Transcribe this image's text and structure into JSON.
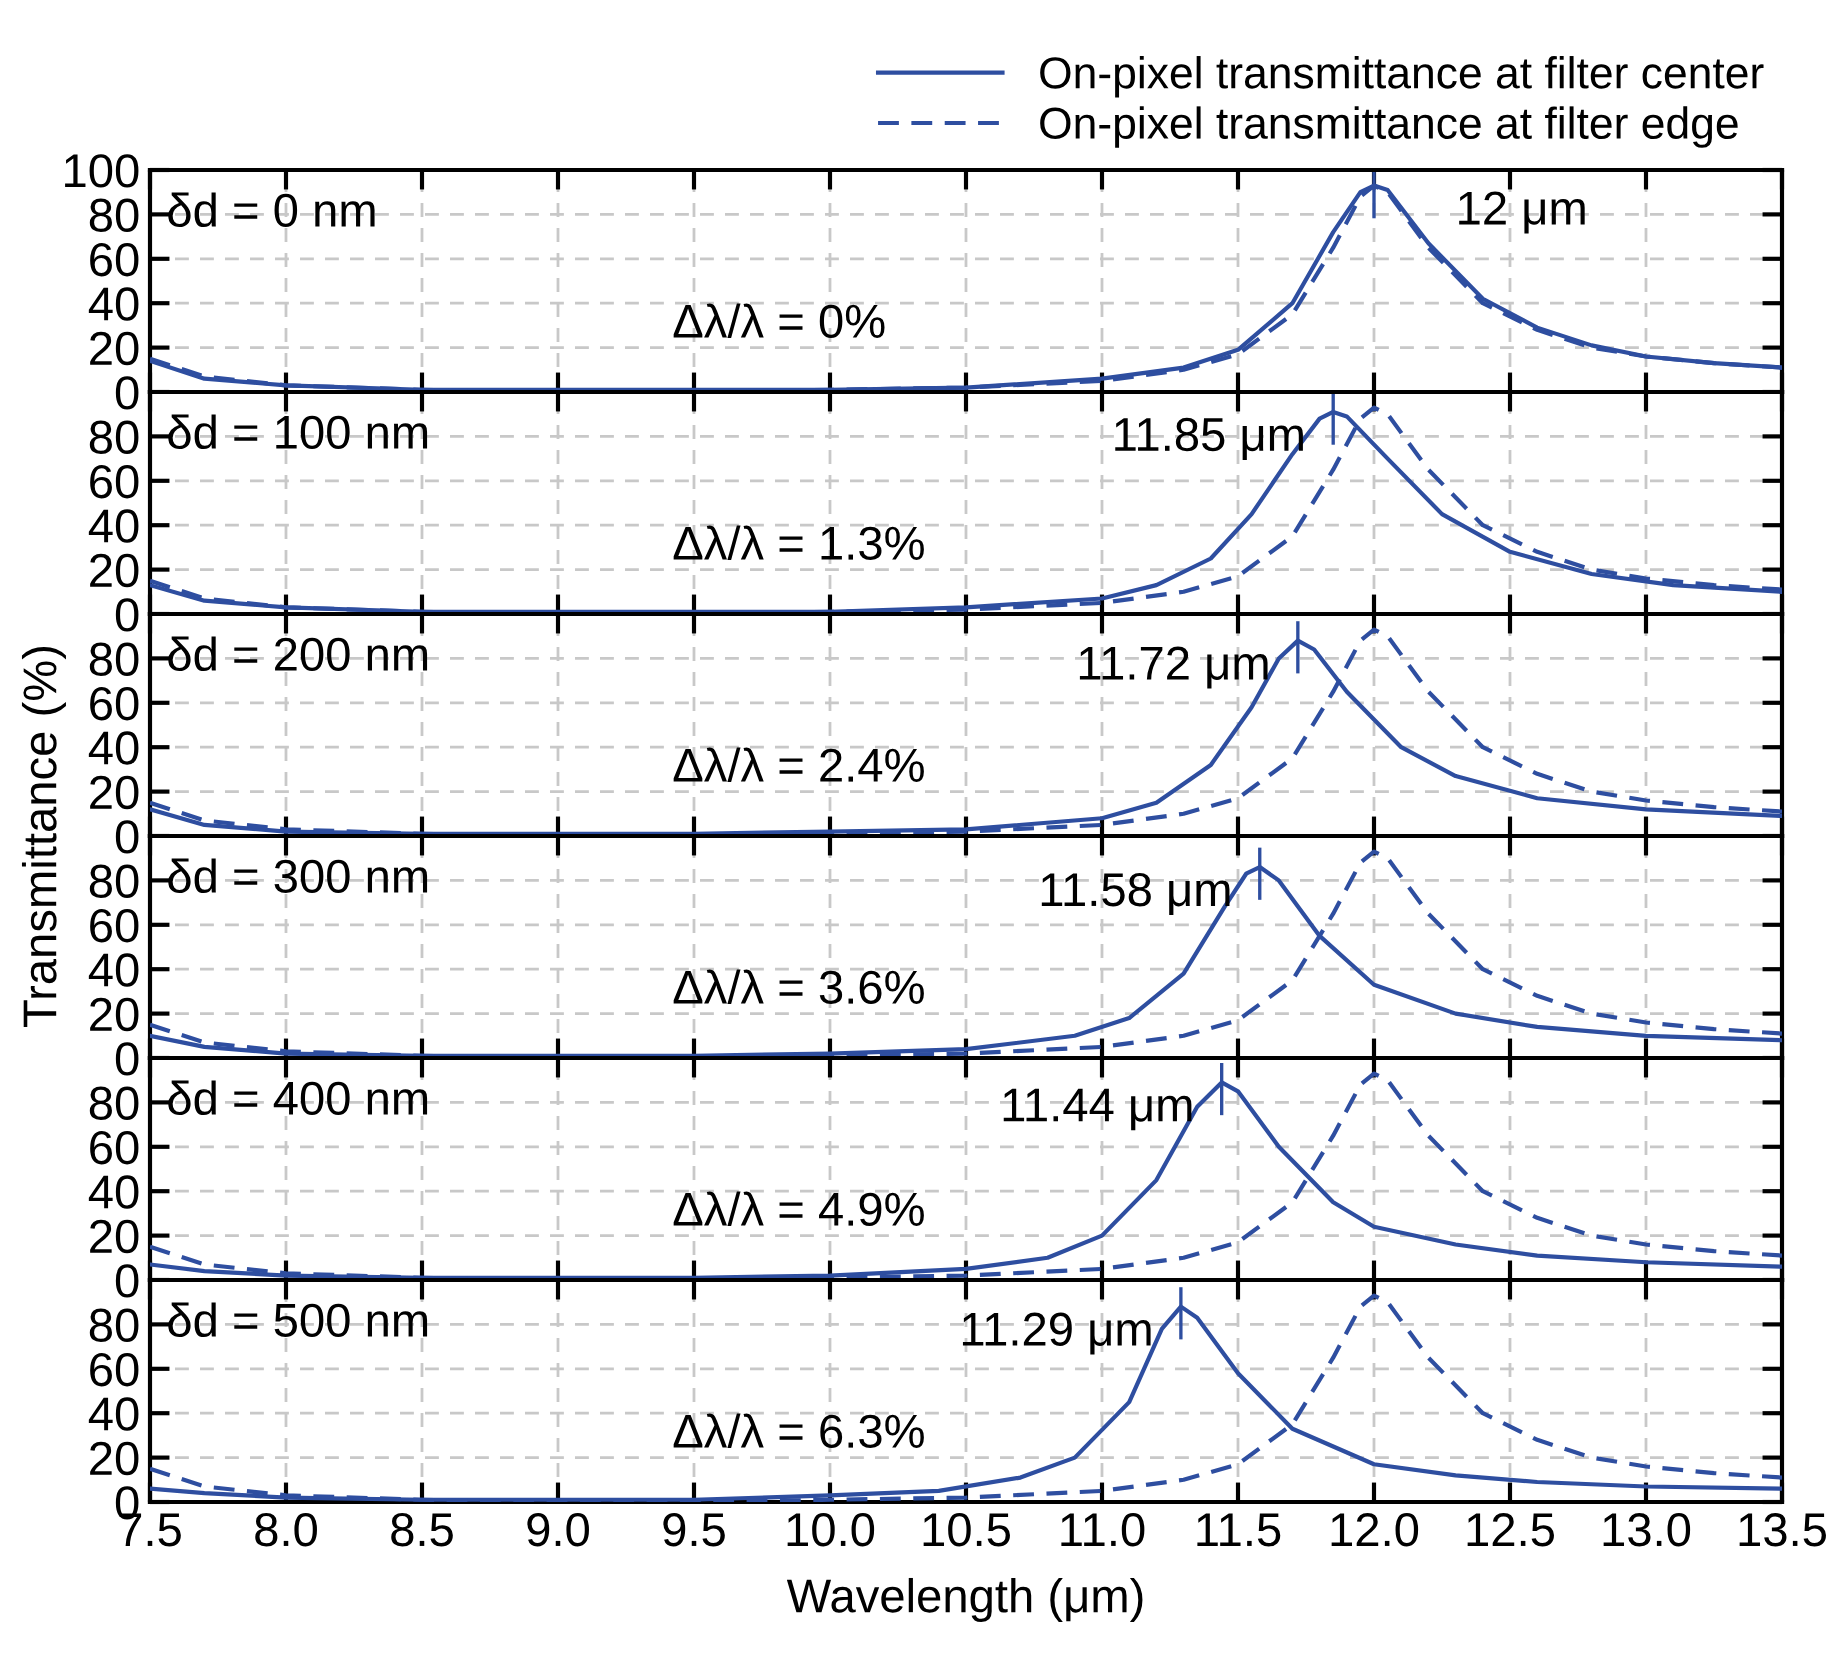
{
  "chart_data": [
    {
      "type": "line",
      "ylabel": "Transmittance (%)",
      "xlim": [
        7.5,
        13.5
      ],
      "ylim": [
        0,
        100
      ],
      "xticks": [
        7.5,
        8,
        8.5,
        9,
        9.5,
        10,
        10.5,
        11,
        11.5,
        12,
        12.5,
        13,
        13.5
      ],
      "yticks": [
        0,
        20,
        40,
        60,
        80,
        100
      ],
      "tick_labels": "y",
      "grid": true,
      "legend": "top right",
      "annotations": [
        "δd = 0 nm",
        "Δλ/λ = 0%",
        {
          "text": "12 μm",
          "x": 12.0,
          "y": 93
        }
      ],
      "series": [
        {
          "name": "On-pixel transmittance at filter center",
          "color": "#2e4ea0",
          "line_style": "solid",
          "x": [
            7.5,
            7.7,
            8.0,
            8.5,
            9.0,
            9.5,
            10.0,
            10.5,
            11.0,
            11.3,
            11.5,
            11.7,
            11.85,
            11.95,
            12.0,
            12.05,
            12.2,
            12.4,
            12.6,
            12.8,
            13.0,
            13.25,
            13.5
          ],
          "values": [
            14,
            6,
            3,
            1,
            1,
            1,
            1,
            2,
            6,
            11,
            19,
            40,
            72,
            90,
            93,
            91,
            67,
            42,
            29,
            21,
            16,
            13,
            11
          ]
        },
        {
          "name": "On-pixel transmittance at filter edge",
          "color": "#2e4ea0",
          "line_style": "dashed",
          "x": [
            7.5,
            7.7,
            8.0,
            8.5,
            9.0,
            9.5,
            10.0,
            10.5,
            11.0,
            11.3,
            11.5,
            11.7,
            11.85,
            11.95,
            12.0,
            12.05,
            12.2,
            12.4,
            12.6,
            12.8,
            13.0,
            13.25,
            13.5
          ],
          "values": [
            15,
            7,
            3,
            1,
            0,
            0,
            1,
            2,
            5,
            10,
            17,
            35,
            65,
            88,
            93,
            90,
            65,
            40,
            28,
            20,
            16,
            13,
            11
          ]
        }
      ]
    },
    {
      "type": "line",
      "xlim": [
        7.5,
        13.5
      ],
      "ylim": [
        0,
        100
      ],
      "xticks": [
        7.5,
        8,
        8.5,
        9,
        9.5,
        10,
        10.5,
        11,
        11.5,
        12,
        12.5,
        13,
        13.5
      ],
      "yticks": [
        0,
        20,
        40,
        60,
        80
      ],
      "tick_labels": "y",
      "grid": true,
      "annotations": [
        "δd = 100 nm",
        "Δλ/λ = 1.3%",
        {
          "text": "11.85 μm",
          "x": 11.85,
          "y": 91
        }
      ],
      "series": [
        {
          "color": "#2e4ea0",
          "line_style": "solid",
          "x": [
            7.5,
            7.7,
            8.0,
            8.5,
            9.0,
            9.5,
            10.0,
            10.5,
            11.0,
            11.2,
            11.4,
            11.55,
            11.7,
            11.8,
            11.85,
            11.9,
            12.05,
            12.25,
            12.5,
            12.8,
            13.1,
            13.5
          ],
          "values": [
            13,
            6,
            3,
            1,
            1,
            1,
            1,
            3,
            7,
            13,
            25,
            45,
            72,
            88,
            91,
            89,
            70,
            45,
            28,
            18,
            13,
            10
          ]
        },
        {
          "color": "#2e4ea0",
          "line_style": "dashed",
          "x": [
            7.5,
            7.7,
            8.0,
            8.5,
            9.0,
            9.5,
            10.0,
            10.5,
            11.0,
            11.3,
            11.5,
            11.7,
            11.85,
            11.95,
            12.0,
            12.05,
            12.2,
            12.4,
            12.6,
            12.8,
            13.0,
            13.25,
            13.5
          ],
          "values": [
            15,
            7,
            3,
            1,
            0,
            0,
            1,
            2,
            5,
            10,
            17,
            35,
            65,
            88,
            93,
            90,
            65,
            40,
            28,
            20,
            16,
            13,
            11
          ]
        }
      ]
    },
    {
      "type": "line",
      "xlim": [
        7.5,
        13.5
      ],
      "ylim": [
        0,
        100
      ],
      "xticks": [
        7.5,
        8,
        8.5,
        9,
        9.5,
        10,
        10.5,
        11,
        11.5,
        12,
        12.5,
        13,
        13.5
      ],
      "yticks": [
        0,
        20,
        40,
        60,
        80
      ],
      "tick_labels": "y",
      "grid": true,
      "annotations": [
        "δd = 200 nm",
        "Δλ/λ = 2.4%",
        {
          "text": "11.72 μm",
          "x": 11.72,
          "y": 88
        }
      ],
      "series": [
        {
          "color": "#2e4ea0",
          "line_style": "solid",
          "x": [
            7.5,
            7.7,
            8.0,
            8.5,
            9.0,
            9.5,
            10.0,
            10.5,
            11.0,
            11.2,
            11.4,
            11.55,
            11.65,
            11.72,
            11.78,
            11.9,
            12.1,
            12.3,
            12.6,
            13.0,
            13.5
          ],
          "values": [
            12,
            5,
            2,
            1,
            1,
            1,
            2,
            3,
            8,
            15,
            32,
            58,
            80,
            88,
            84,
            65,
            40,
            27,
            17,
            12,
            9
          ]
        },
        {
          "color": "#2e4ea0",
          "line_style": "dashed",
          "x": [
            7.5,
            7.7,
            8.0,
            8.5,
            9.0,
            9.5,
            10.0,
            10.5,
            11.0,
            11.3,
            11.5,
            11.7,
            11.85,
            11.95,
            12.0,
            12.05,
            12.2,
            12.4,
            12.6,
            12.8,
            13.0,
            13.25,
            13.5
          ],
          "values": [
            15,
            7,
            3,
            1,
            0,
            0,
            1,
            2,
            5,
            10,
            17,
            35,
            65,
            88,
            93,
            90,
            65,
            40,
            28,
            20,
            16,
            13,
            11
          ]
        }
      ]
    },
    {
      "type": "line",
      "xlim": [
        7.5,
        13.5
      ],
      "ylim": [
        0,
        100
      ],
      "xticks": [
        7.5,
        8,
        8.5,
        9,
        9.5,
        10,
        10.5,
        11,
        11.5,
        12,
        12.5,
        13,
        13.5
      ],
      "yticks": [
        0,
        20,
        40,
        60,
        80
      ],
      "tick_labels": "y",
      "grid": true,
      "annotations": [
        "δd = 300 nm",
        "Δλ/λ = 3.6%",
        {
          "text": "11.58 μm",
          "x": 11.58,
          "y": 86
        }
      ],
      "series": [
        {
          "color": "#2e4ea0",
          "line_style": "solid",
          "x": [
            7.5,
            7.7,
            8.0,
            8.5,
            9.0,
            9.5,
            10.0,
            10.5,
            10.9,
            11.1,
            11.3,
            11.45,
            11.53,
            11.58,
            11.65,
            11.8,
            12.0,
            12.3,
            12.6,
            13.0,
            13.5
          ],
          "values": [
            10,
            5,
            2,
            1,
            1,
            1,
            2,
            4,
            10,
            18,
            38,
            68,
            83,
            86,
            80,
            55,
            33,
            20,
            14,
            10,
            8
          ]
        },
        {
          "color": "#2e4ea0",
          "line_style": "dashed",
          "x": [
            7.5,
            7.7,
            8.0,
            8.5,
            9.0,
            9.5,
            10.0,
            10.5,
            11.0,
            11.3,
            11.5,
            11.7,
            11.85,
            11.95,
            12.0,
            12.05,
            12.2,
            12.4,
            12.6,
            12.8,
            13.0,
            13.25,
            13.5
          ],
          "values": [
            15,
            7,
            3,
            1,
            0,
            0,
            1,
            2,
            5,
            10,
            17,
            35,
            65,
            88,
            93,
            90,
            65,
            40,
            28,
            20,
            16,
            13,
            11
          ]
        }
      ]
    },
    {
      "type": "line",
      "xlim": [
        7.5,
        13.5
      ],
      "ylim": [
        0,
        100
      ],
      "xticks": [
        7.5,
        8,
        8.5,
        9,
        9.5,
        10,
        10.5,
        11,
        11.5,
        12,
        12.5,
        13,
        13.5
      ],
      "yticks": [
        0,
        20,
        40,
        60,
        80
      ],
      "tick_labels": "y",
      "grid": true,
      "annotations": [
        "δd = 400 nm",
        "Δλ/λ = 4.9%",
        {
          "text": "11.44 μm",
          "x": 11.44,
          "y": 89
        }
      ],
      "series": [
        {
          "color": "#2e4ea0",
          "line_style": "solid",
          "x": [
            7.5,
            7.7,
            8.0,
            8.5,
            9.0,
            9.5,
            10.0,
            10.5,
            10.8,
            11.0,
            11.2,
            11.35,
            11.44,
            11.5,
            11.65,
            11.85,
            12.0,
            12.3,
            12.6,
            13.0,
            13.5
          ],
          "values": [
            7,
            4,
            2,
            1,
            1,
            1,
            2,
            5,
            10,
            20,
            45,
            78,
            89,
            85,
            60,
            35,
            24,
            16,
            11,
            8,
            6
          ]
        },
        {
          "color": "#2e4ea0",
          "line_style": "dashed",
          "x": [
            7.5,
            7.7,
            8.0,
            8.5,
            9.0,
            9.5,
            10.0,
            10.5,
            11.0,
            11.3,
            11.5,
            11.7,
            11.85,
            11.95,
            12.0,
            12.05,
            12.2,
            12.4,
            12.6,
            12.8,
            13.0,
            13.25,
            13.5
          ],
          "values": [
            15,
            7,
            3,
            1,
            0,
            0,
            1,
            2,
            5,
            10,
            17,
            35,
            65,
            88,
            93,
            90,
            65,
            40,
            28,
            20,
            16,
            13,
            11
          ]
        }
      ]
    },
    {
      "type": "line",
      "xlabel": "Wavelength (μm)",
      "xlim": [
        7.5,
        13.5
      ],
      "ylim": [
        0,
        100
      ],
      "xticks": [
        {
          "value": 7.5,
          "label": "7.5"
        },
        {
          "value": 8,
          "label": "8.0"
        },
        {
          "value": 8.5,
          "label": "8.5"
        },
        {
          "value": 9,
          "label": "9.0"
        },
        {
          "value": 9.5,
          "label": "9.5"
        },
        {
          "value": 10,
          "label": "10.0"
        },
        {
          "value": 10.5,
          "label": "10.5"
        },
        {
          "value": 11,
          "label": "11.0"
        },
        {
          "value": 11.5,
          "label": "11.5"
        },
        {
          "value": 12,
          "label": "12.0"
        },
        {
          "value": 12.5,
          "label": "12.5"
        },
        {
          "value": 13,
          "label": "13.0"
        },
        {
          "value": 13.5,
          "label": "13.5"
        }
      ],
      "yticks": [
        0,
        20,
        40,
        60,
        80
      ],
      "grid": true,
      "annotations": [
        "δd = 500 nm",
        "Δλ/λ = 6.3%",
        {
          "text": "11.29 μm",
          "x": 11.29,
          "y": 88
        }
      ],
      "series": [
        {
          "color": "#2e4ea0",
          "line_style": "solid",
          "x": [
            7.5,
            7.7,
            8.0,
            8.5,
            9.0,
            9.5,
            10.0,
            10.4,
            10.7,
            10.9,
            11.1,
            11.22,
            11.29,
            11.35,
            11.5,
            11.7,
            12.0,
            12.3,
            12.6,
            13.0,
            13.5
          ],
          "values": [
            6,
            4,
            2,
            1,
            1,
            1,
            3,
            5,
            11,
            20,
            45,
            78,
            88,
            83,
            58,
            33,
            17,
            12,
            9,
            7,
            6
          ]
        },
        {
          "color": "#2e4ea0",
          "line_style": "dashed",
          "x": [
            7.5,
            7.7,
            8.0,
            8.5,
            9.0,
            9.5,
            10.0,
            10.5,
            11.0,
            11.3,
            11.5,
            11.7,
            11.85,
            11.95,
            12.0,
            12.05,
            12.2,
            12.4,
            12.6,
            12.8,
            13.0,
            13.25,
            13.5
          ],
          "values": [
            15,
            7,
            3,
            1,
            0,
            0,
            1,
            2,
            5,
            10,
            17,
            35,
            65,
            88,
            93,
            90,
            65,
            40,
            28,
            20,
            16,
            13,
            11
          ]
        }
      ]
    }
  ]
}
